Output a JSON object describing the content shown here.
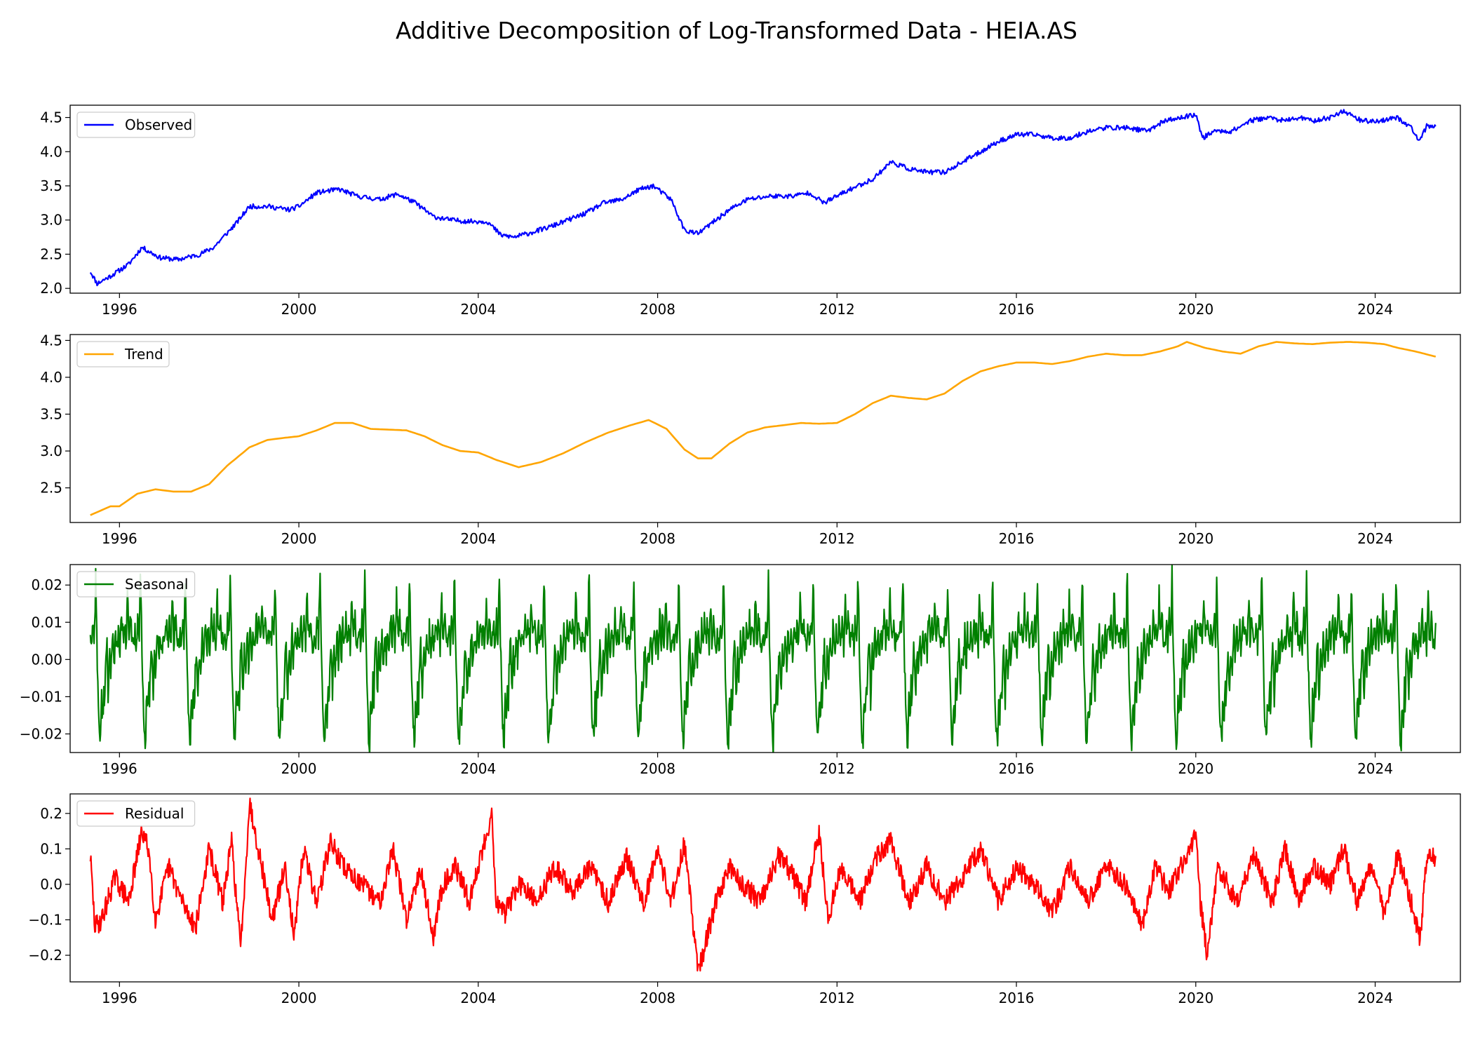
{
  "figure": {
    "title": "Additive Decomposition of Log-Transformed Data - HEIA.AS"
  },
  "chart_data": [
    {
      "type": "line",
      "panel": "observed",
      "series": [
        {
          "name": "Observed",
          "color": "#0000ff"
        }
      ],
      "xlim": [
        1994.9,
        2025.9
      ],
      "ylim": [
        1.93,
        4.68
      ],
      "xticks": [
        1996,
        2000,
        2004,
        2008,
        2012,
        2016,
        2020,
        2024
      ],
      "yticks": [
        2.0,
        2.5,
        3.0,
        3.5,
        4.0,
        4.5
      ],
      "ytick_labels": [
        "2.0",
        "2.5",
        "3.0",
        "3.5",
        "4.0",
        "4.5"
      ],
      "x": [
        1995.35,
        1995.5,
        1995.8,
        1996.2,
        1996.5,
        1996.9,
        1997.3,
        1997.8,
        1998.1,
        1998.6,
        1998.9,
        1999.3,
        1999.8,
        2000.0,
        2000.4,
        2000.9,
        2001.3,
        2001.8,
        2002.2,
        2002.6,
        2003.0,
        2003.4,
        2003.8,
        2004.2,
        2004.5,
        2004.8,
        2005.2,
        2005.6,
        2006.0,
        2006.4,
        2006.8,
        2007.2,
        2007.6,
        2007.9,
        2008.3,
        2008.6,
        2008.9,
        2009.2,
        2009.6,
        2010.0,
        2010.5,
        2011.0,
        2011.4,
        2011.7,
        2012.0,
        2012.3,
        2012.8,
        2013.2,
        2013.6,
        2014.0,
        2014.4,
        2014.8,
        2015.2,
        2015.6,
        2016.0,
        2016.4,
        2016.8,
        2017.2,
        2017.6,
        2018.0,
        2018.5,
        2018.9,
        2019.3,
        2019.7,
        2020.0,
        2020.15,
        2020.4,
        2020.8,
        2021.2,
        2021.6,
        2022.0,
        2022.3,
        2022.6,
        2023.0,
        2023.3,
        2023.7,
        2024.1,
        2024.5,
        2024.8,
        2025.0,
        2025.15,
        2025.35
      ],
      "y": [
        2.25,
        2.07,
        2.18,
        2.35,
        2.6,
        2.45,
        2.42,
        2.5,
        2.6,
        2.95,
        3.2,
        3.2,
        3.15,
        3.2,
        3.4,
        3.45,
        3.35,
        3.3,
        3.38,
        3.25,
        3.05,
        3.0,
        2.98,
        2.98,
        2.78,
        2.75,
        2.82,
        2.9,
        3.0,
        3.1,
        3.25,
        3.3,
        3.45,
        3.5,
        3.3,
        2.85,
        2.8,
        2.95,
        3.15,
        3.3,
        3.35,
        3.35,
        3.4,
        3.25,
        3.35,
        3.45,
        3.6,
        3.85,
        3.75,
        3.7,
        3.7,
        3.85,
        4.0,
        4.15,
        4.25,
        4.25,
        4.2,
        4.2,
        4.3,
        4.35,
        4.35,
        4.3,
        4.45,
        4.5,
        4.55,
        4.2,
        4.3,
        4.3,
        4.45,
        4.5,
        4.45,
        4.5,
        4.45,
        4.5,
        4.6,
        4.45,
        4.45,
        4.5,
        4.35,
        4.15,
        4.38,
        4.37
      ]
    },
    {
      "type": "line",
      "panel": "trend",
      "series": [
        {
          "name": "Trend",
          "color": "#ffa500"
        }
      ],
      "xlim": [
        1994.9,
        2025.9
      ],
      "ylim": [
        2.03,
        4.58
      ],
      "xticks": [
        1996,
        2000,
        2004,
        2008,
        2012,
        2016,
        2020,
        2024
      ],
      "yticks": [
        2.5,
        3.0,
        3.5,
        4.0,
        4.5
      ],
      "ytick_labels": [
        "2.5",
        "3.0",
        "3.5",
        "4.0",
        "4.5"
      ],
      "x": [
        1995.35,
        1995.8,
        1996.0,
        1996.4,
        1996.8,
        1997.2,
        1997.6,
        1998.0,
        1998.4,
        1998.9,
        1999.3,
        1999.7,
        2000.0,
        2000.4,
        2000.8,
        2001.2,
        2001.6,
        2002.0,
        2002.4,
        2002.8,
        2003.2,
        2003.6,
        2004.0,
        2004.4,
        2004.9,
        2005.4,
        2005.9,
        2006.4,
        2006.9,
        2007.4,
        2007.8,
        2008.2,
        2008.6,
        2008.9,
        2009.2,
        2009.6,
        2010.0,
        2010.4,
        2010.8,
        2011.2,
        2011.6,
        2012.0,
        2012.4,
        2012.8,
        2013.2,
        2013.6,
        2014.0,
        2014.4,
        2014.8,
        2015.2,
        2015.6,
        2016.0,
        2016.4,
        2016.8,
        2017.2,
        2017.6,
        2018.0,
        2018.4,
        2018.8,
        2019.2,
        2019.6,
        2019.8,
        2020.2,
        2020.6,
        2021.0,
        2021.4,
        2021.8,
        2022.2,
        2022.6,
        2023.0,
        2023.4,
        2023.8,
        2024.2,
        2024.5,
        2024.9,
        2025.35
      ],
      "y": [
        2.13,
        2.25,
        2.25,
        2.42,
        2.48,
        2.45,
        2.45,
        2.55,
        2.8,
        3.05,
        3.15,
        3.18,
        3.2,
        3.28,
        3.38,
        3.38,
        3.3,
        3.29,
        3.28,
        3.2,
        3.08,
        3.0,
        2.98,
        2.88,
        2.78,
        2.85,
        2.97,
        3.12,
        3.25,
        3.35,
        3.42,
        3.3,
        3.02,
        2.9,
        2.9,
        3.1,
        3.25,
        3.32,
        3.35,
        3.38,
        3.37,
        3.38,
        3.5,
        3.65,
        3.75,
        3.72,
        3.7,
        3.78,
        3.95,
        4.08,
        4.15,
        4.2,
        4.2,
        4.18,
        4.22,
        4.28,
        4.32,
        4.3,
        4.3,
        4.35,
        4.42,
        4.48,
        4.4,
        4.35,
        4.32,
        4.42,
        4.48,
        4.46,
        4.45,
        4.47,
        4.48,
        4.47,
        4.45,
        4.4,
        4.35,
        4.28
      ]
    },
    {
      "type": "line",
      "panel": "seasonal",
      "series": [
        {
          "name": "Seasonal",
          "color": "#008000"
        }
      ],
      "xlim": [
        1994.9,
        2025.9
      ],
      "ylim": [
        -0.025,
        0.0255
      ],
      "xticks": [
        1996,
        2000,
        2004,
        2008,
        2012,
        2016,
        2020,
        2024
      ],
      "yticks": [
        -0.02,
        -0.01,
        0.0,
        0.01,
        0.02
      ],
      "ytick_labels": [
        "−0.02",
        "−0.01",
        "0.00",
        "0.01",
        "0.02"
      ],
      "period_years": 1.0,
      "cycle_phase": [
        0.0,
        0.03,
        0.06,
        0.09,
        0.12,
        0.15,
        0.18,
        0.2,
        0.23,
        0.25,
        0.28,
        0.3,
        0.32,
        0.34,
        0.37,
        0.4,
        0.43,
        0.46,
        0.5,
        0.53,
        0.56,
        0.6,
        0.63,
        0.66,
        0.7,
        0.73,
        0.76,
        0.8,
        0.83,
        0.86,
        0.9,
        0.93,
        0.96,
        1.0
      ],
      "cycle_values": [
        0.008,
        0.003,
        0.011,
        0.005,
        0.023,
        0.002,
        -0.012,
        -0.019,
        -0.023,
        -0.01,
        -0.016,
        -0.006,
        -0.013,
        -0.002,
        0.004,
        -0.011,
        0.003,
        -0.004,
        0.007,
        -0.002,
        0.008,
        0.001,
        0.009,
        0.002,
        0.012,
        0.004,
        0.01,
        0.003,
        0.018,
        0.005,
        0.011,
        0.006,
        0.004,
        0.008
      ],
      "x_start": 1995.35,
      "x_end": 2025.35
    },
    {
      "type": "line",
      "panel": "residual",
      "series": [
        {
          "name": "Residual",
          "color": "#ff0000"
        }
      ],
      "xlim": [
        1994.9,
        2025.9
      ],
      "ylim": [
        -0.275,
        0.255
      ],
      "xticks": [
        1996,
        2000,
        2004,
        2008,
        2012,
        2016,
        2020,
        2024
      ],
      "yticks": [
        -0.2,
        -0.1,
        0.0,
        0.1,
        0.2
      ],
      "ytick_labels": [
        "−0.2",
        "−0.1",
        "0.0",
        "0.1",
        "0.2"
      ],
      "x": [
        1995.35,
        1995.45,
        1995.6,
        1995.9,
        1996.2,
        1996.5,
        1996.65,
        1996.8,
        1997.1,
        1997.4,
        1997.7,
        1998.0,
        1998.3,
        1998.5,
        1998.7,
        1998.9,
        1999.1,
        1999.4,
        1999.7,
        1999.9,
        2000.1,
        2000.4,
        2000.7,
        2001.0,
        2001.4,
        2001.8,
        2002.1,
        2002.4,
        2002.7,
        2003.0,
        2003.2,
        2003.5,
        2003.8,
        2004.1,
        2004.3,
        2004.4,
        2004.6,
        2004.9,
        2005.3,
        2005.7,
        2006.1,
        2006.5,
        2006.9,
        2007.3,
        2007.7,
        2008.0,
        2008.3,
        2008.6,
        2008.9,
        2009.0,
        2009.3,
        2009.6,
        2009.9,
        2010.3,
        2010.7,
        2011.0,
        2011.3,
        2011.6,
        2011.8,
        2012.1,
        2012.5,
        2012.9,
        2013.2,
        2013.6,
        2014.0,
        2014.4,
        2014.8,
        2015.2,
        2015.6,
        2016.0,
        2016.4,
        2016.8,
        2017.2,
        2017.6,
        2018.0,
        2018.4,
        2018.8,
        2019.1,
        2019.4,
        2019.8,
        2020.0,
        2020.1,
        2020.25,
        2020.5,
        2020.9,
        2021.3,
        2021.7,
        2022.0,
        2022.3,
        2022.6,
        2023.0,
        2023.3,
        2023.6,
        2023.9,
        2024.2,
        2024.5,
        2024.8,
        2025.0,
        2025.15,
        2025.35
      ],
      "y": [
        0.08,
        -0.12,
        -0.1,
        0.02,
        -0.05,
        0.15,
        0.1,
        -0.1,
        0.05,
        -0.05,
        -0.12,
        0.1,
        -0.05,
        0.12,
        -0.18,
        0.23,
        0.1,
        -0.1,
        0.05,
        -0.15,
        0.1,
        -0.05,
        0.12,
        0.05,
        0.0,
        -0.05,
        0.1,
        -0.1,
        0.05,
        -0.15,
        0.0,
        0.05,
        -0.05,
        0.1,
        0.2,
        -0.05,
        -0.08,
        0.0,
        -0.05,
        0.05,
        -0.02,
        0.05,
        -0.05,
        0.08,
        -0.05,
        0.1,
        -0.05,
        0.12,
        -0.25,
        -0.2,
        -0.05,
        0.05,
        0.0,
        -0.05,
        0.08,
        0.03,
        -0.05,
        0.15,
        -0.1,
        0.05,
        -0.05,
        0.08,
        0.12,
        -0.05,
        0.05,
        -0.05,
        0.02,
        0.1,
        -0.05,
        0.05,
        0.0,
        -0.08,
        0.05,
        -0.05,
        0.06,
        0.0,
        -0.12,
        0.05,
        -0.02,
        0.08,
        0.15,
        -0.05,
        -0.2,
        0.05,
        -0.05,
        0.08,
        -0.05,
        0.1,
        -0.05,
        0.05,
        0.0,
        0.1,
        -0.05,
        0.05,
        -0.08,
        0.08,
        -0.05,
        -0.15,
        0.07,
        0.08
      ]
    }
  ]
}
